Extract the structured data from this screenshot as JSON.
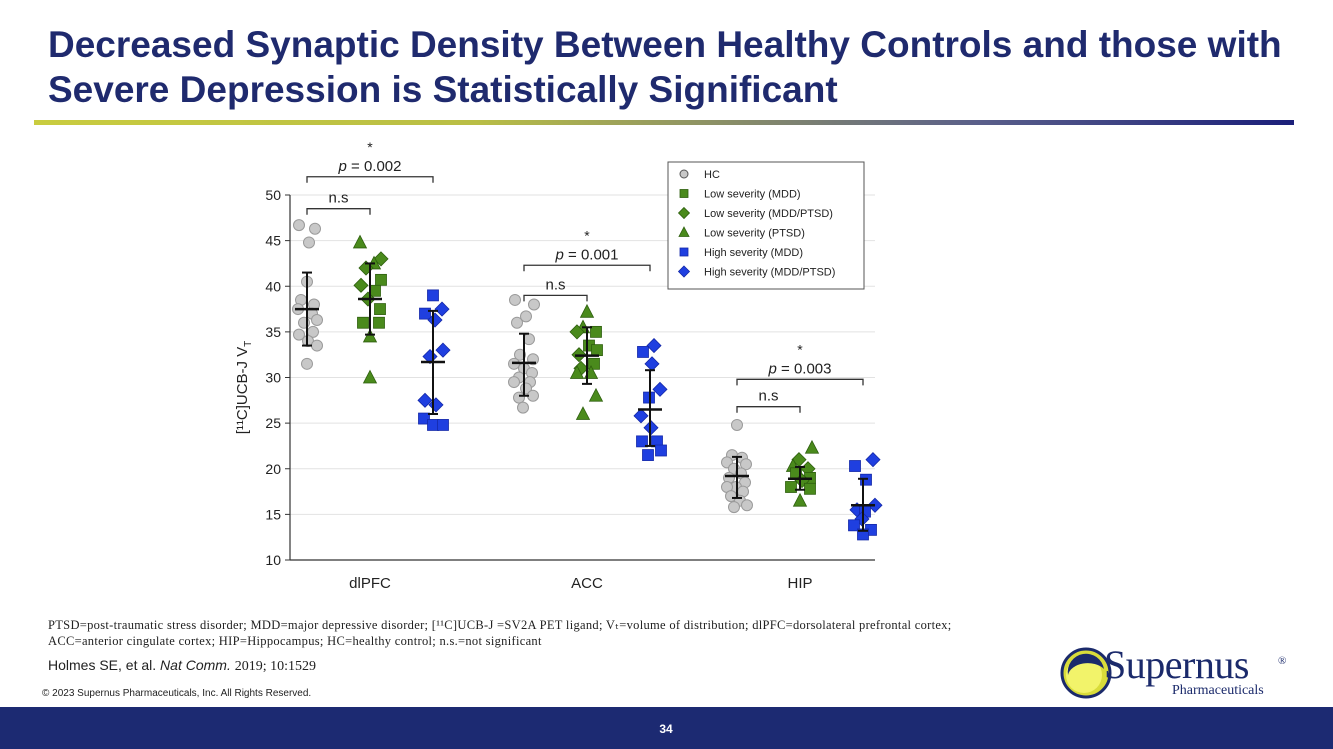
{
  "slide": {
    "title": "Decreased Synaptic Density Between Healthy Controls and those with Severe Depression is Statistically Significant",
    "footnote_line1": "PTSD=post-traumatic stress disorder; MDD=major depressive disorder; [¹¹C]UCB-J =SV2A PET ligand; Vₜ=volume of distribution; dlPFC=dorsolateral prefrontal cortex;",
    "footnote_line2": "ACC=anterior cingulate cortex; HIP=Hippocampus; HC=healthy control; n.s.=not significant",
    "citation_authors": "Holmes SE, et al.",
    "citation_journal": "Nat Comm.",
    "citation_details": "2019; 10:1529",
    "copyright": "© 2023 Supernus Pharmaceuticals, Inc. All Rights Reserved.",
    "page_number": "34",
    "logo_word": "Supernus",
    "logo_registered": "®",
    "logo_subtitle": "Pharmaceuticals"
  },
  "colors": {
    "title": "#1f2a6e",
    "footer_bar": "#1c2a72",
    "hc": "#c8c8c8",
    "low_severity": "#4a8a1c",
    "high_severity": "#1f3fe0"
  },
  "chart_data": {
    "type": "scatter",
    "ylabel": "[¹¹C]UCB-J V_T",
    "ylim": [
      10,
      50
    ],
    "yticks": [
      10,
      15,
      20,
      25,
      30,
      35,
      40,
      45,
      50
    ],
    "categories": [
      "dlPFC",
      "ACC",
      "HIP"
    ],
    "legend_position": "top-right",
    "legend": [
      {
        "label": "HC",
        "marker": "circle",
        "color": "#c8c8c8"
      },
      {
        "label": "Low severity (MDD)",
        "marker": "square",
        "color": "#4a8a1c"
      },
      {
        "label": "Low severity (MDD/PTSD)",
        "marker": "diamond",
        "color": "#4a8a1c"
      },
      {
        "label": "Low severity (PTSD)",
        "marker": "triangle",
        "color": "#4a8a1c"
      },
      {
        "label": "High severity (MDD)",
        "marker": "square",
        "color": "#1f3fe0"
      },
      {
        "label": "High severity (MDD/PTSD)",
        "marker": "diamond",
        "color": "#1f3fe0"
      }
    ],
    "groups": [
      {
        "region": "dlPFC",
        "group": "HC",
        "mean": 37.5,
        "sd_low": 33.5,
        "sd_high": 41.5,
        "points": [
          {
            "m": "circle",
            "v": 46.7,
            "o": -8
          },
          {
            "m": "circle",
            "v": 46.3,
            "o": 8
          },
          {
            "m": "circle",
            "v": 44.8,
            "o": 2
          },
          {
            "m": "circle",
            "v": 40.5,
            "o": 0
          },
          {
            "m": "circle",
            "v": 38.5,
            "o": -6
          },
          {
            "m": "circle",
            "v": 38.0,
            "o": 7
          },
          {
            "m": "circle",
            "v": 37.5,
            "o": -9
          },
          {
            "m": "circle",
            "v": 37.0,
            "o": 5
          },
          {
            "m": "circle",
            "v": 36.3,
            "o": 10
          },
          {
            "m": "circle",
            "v": 36.0,
            "o": -3
          },
          {
            "m": "circle",
            "v": 35.0,
            "o": 6
          },
          {
            "m": "circle",
            "v": 34.7,
            "o": -8
          },
          {
            "m": "circle",
            "v": 34.0,
            "o": 1
          },
          {
            "m": "circle",
            "v": 33.5,
            "o": 10
          },
          {
            "m": "circle",
            "v": 31.5,
            "o": 0
          }
        ]
      },
      {
        "region": "dlPFC",
        "group": "Low severity",
        "mean": 38.6,
        "sd_low": 34.7,
        "sd_high": 42.5,
        "points": [
          {
            "m": "triangle",
            "v": 44.8,
            "o": -10
          },
          {
            "m": "diamond",
            "v": 43.0,
            "o": 11
          },
          {
            "m": "triangle",
            "v": 42.5,
            "o": 4
          },
          {
            "m": "diamond",
            "v": 42.0,
            "o": -4
          },
          {
            "m": "square",
            "v": 40.7,
            "o": 11
          },
          {
            "m": "diamond",
            "v": 40.1,
            "o": -9
          },
          {
            "m": "square",
            "v": 39.5,
            "o": 5
          },
          {
            "m": "diamond",
            "v": 38.6,
            "o": -2
          },
          {
            "m": "square",
            "v": 37.5,
            "o": 10
          },
          {
            "m": "square",
            "v": 36.0,
            "o": -7
          },
          {
            "m": "square",
            "v": 36.0,
            "o": 9
          },
          {
            "m": "triangle",
            "v": 34.5,
            "o": 0
          },
          {
            "m": "triangle",
            "v": 30.0,
            "o": 0
          }
        ]
      },
      {
        "region": "dlPFC",
        "group": "High severity",
        "mean": 31.7,
        "sd_low": 26.0,
        "sd_high": 37.3,
        "points": [
          {
            "m": "square",
            "v": 39.0,
            "o": 0
          },
          {
            "m": "diamond",
            "v": 37.5,
            "o": 9
          },
          {
            "m": "square",
            "v": 37.0,
            "o": -8
          },
          {
            "m": "diamond",
            "v": 36.3,
            "o": 2
          },
          {
            "m": "diamond",
            "v": 33.0,
            "o": 10
          },
          {
            "m": "diamond",
            "v": 32.3,
            "o": -3
          },
          {
            "m": "diamond",
            "v": 27.5,
            "o": -8
          },
          {
            "m": "diamond",
            "v": 27.0,
            "o": 3
          },
          {
            "m": "square",
            "v": 25.5,
            "o": -9
          },
          {
            "m": "square",
            "v": 24.8,
            "o": 0
          },
          {
            "m": "square",
            "v": 24.8,
            "o": 10
          }
        ]
      },
      {
        "region": "ACC",
        "group": "HC",
        "mean": 31.6,
        "sd_low": 28.0,
        "sd_high": 34.8,
        "points": [
          {
            "m": "circle",
            "v": 38.5,
            "o": -9
          },
          {
            "m": "circle",
            "v": 38.0,
            "o": 10
          },
          {
            "m": "circle",
            "v": 36.7,
            "o": 2
          },
          {
            "m": "circle",
            "v": 36.0,
            "o": -7
          },
          {
            "m": "circle",
            "v": 34.2,
            "o": 5
          },
          {
            "m": "circle",
            "v": 32.5,
            "o": -4
          },
          {
            "m": "circle",
            "v": 32.0,
            "o": 9
          },
          {
            "m": "circle",
            "v": 31.5,
            "o": -10
          },
          {
            "m": "circle",
            "v": 31.0,
            "o": 0
          },
          {
            "m": "circle",
            "v": 30.5,
            "o": 8
          },
          {
            "m": "circle",
            "v": 30.0,
            "o": -5
          },
          {
            "m": "circle",
            "v": 29.5,
            "o": 6
          },
          {
            "m": "circle",
            "v": 29.5,
            "o": -10
          },
          {
            "m": "circle",
            "v": 28.8,
            "o": 2
          },
          {
            "m": "circle",
            "v": 28.0,
            "o": 9
          },
          {
            "m": "circle",
            "v": 27.8,
            "o": -5
          },
          {
            "m": "circle",
            "v": 26.7,
            "o": -1
          }
        ]
      },
      {
        "region": "ACC",
        "group": "Low severity",
        "mean": 32.4,
        "sd_low": 29.3,
        "sd_high": 35.5,
        "points": [
          {
            "m": "triangle",
            "v": 37.2,
            "o": 0
          },
          {
            "m": "triangle",
            "v": 35.5,
            "o": -4
          },
          {
            "m": "diamond",
            "v": 35.0,
            "o": -10
          },
          {
            "m": "square",
            "v": 35.0,
            "o": 9
          },
          {
            "m": "square",
            "v": 33.5,
            "o": 2
          },
          {
            "m": "square",
            "v": 33.0,
            "o": 10
          },
          {
            "m": "diamond",
            "v": 32.5,
            "o": -8
          },
          {
            "m": "square",
            "v": 31.5,
            "o": 7
          },
          {
            "m": "diamond",
            "v": 31.0,
            "o": -6
          },
          {
            "m": "triangle",
            "v": 30.5,
            "o": 4
          },
          {
            "m": "triangle",
            "v": 30.5,
            "o": -10
          },
          {
            "m": "triangle",
            "v": 28.0,
            "o": 9
          },
          {
            "m": "triangle",
            "v": 26.0,
            "o": -4
          }
        ]
      },
      {
        "region": "ACC",
        "group": "High severity",
        "mean": 26.5,
        "sd_low": 22.5,
        "sd_high": 30.8,
        "points": [
          {
            "m": "diamond",
            "v": 33.5,
            "o": 4
          },
          {
            "m": "square",
            "v": 32.8,
            "o": -7
          },
          {
            "m": "diamond",
            "v": 31.5,
            "o": 2
          },
          {
            "m": "diamond",
            "v": 28.7,
            "o": 10
          },
          {
            "m": "square",
            "v": 27.8,
            "o": -1
          },
          {
            "m": "diamond",
            "v": 25.8,
            "o": -9
          },
          {
            "m": "diamond",
            "v": 24.5,
            "o": 1
          },
          {
            "m": "square",
            "v": 23.0,
            "o": -8
          },
          {
            "m": "square",
            "v": 23.0,
            "o": 7
          },
          {
            "m": "square",
            "v": 22.0,
            "o": 11
          },
          {
            "m": "square",
            "v": 21.5,
            "o": -2
          }
        ]
      },
      {
        "region": "HIP",
        "group": "HC",
        "mean": 19.2,
        "sd_low": 16.8,
        "sd_high": 21.3,
        "points": [
          {
            "m": "circle",
            "v": 24.8,
            "o": 0
          },
          {
            "m": "circle",
            "v": 21.5,
            "o": -5
          },
          {
            "m": "circle",
            "v": 21.2,
            "o": 5
          },
          {
            "m": "circle",
            "v": 20.7,
            "o": -10
          },
          {
            "m": "circle",
            "v": 20.5,
            "o": 9
          },
          {
            "m": "circle",
            "v": 20.0,
            "o": -3
          },
          {
            "m": "circle",
            "v": 19.5,
            "o": 4
          },
          {
            "m": "circle",
            "v": 19.0,
            "o": -8
          },
          {
            "m": "circle",
            "v": 18.5,
            "o": 8
          },
          {
            "m": "circle",
            "v": 18.0,
            "o": -1
          },
          {
            "m": "circle",
            "v": 18.0,
            "o": -10
          },
          {
            "m": "circle",
            "v": 17.5,
            "o": 6
          },
          {
            "m": "circle",
            "v": 17.0,
            "o": -6
          },
          {
            "m": "circle",
            "v": 16.5,
            "o": 3
          },
          {
            "m": "circle",
            "v": 16.0,
            "o": 10
          },
          {
            "m": "circle",
            "v": 15.8,
            "o": -3
          }
        ]
      },
      {
        "region": "HIP",
        "group": "Low severity",
        "mean": 18.9,
        "sd_low": 17.7,
        "sd_high": 20.2,
        "points": [
          {
            "m": "triangle",
            "v": 22.3,
            "o": 12
          },
          {
            "m": "diamond",
            "v": 21.0,
            "o": -1
          },
          {
            "m": "triangle",
            "v": 20.3,
            "o": -7
          },
          {
            "m": "diamond",
            "v": 20.0,
            "o": 8
          },
          {
            "m": "square",
            "v": 19.5,
            "o": -4
          },
          {
            "m": "square",
            "v": 19.0,
            "o": 10
          },
          {
            "m": "diamond",
            "v": 18.7,
            "o": 2
          },
          {
            "m": "square",
            "v": 18.0,
            "o": -9
          },
          {
            "m": "square",
            "v": 17.8,
            "o": 10
          },
          {
            "m": "triangle",
            "v": 16.5,
            "o": 0
          }
        ]
      },
      {
        "region": "HIP",
        "group": "High severity",
        "mean": 16.0,
        "sd_low": 13.2,
        "sd_high": 18.9,
        "points": [
          {
            "m": "diamond",
            "v": 21.0,
            "o": 10
          },
          {
            "m": "square",
            "v": 20.3,
            "o": -8
          },
          {
            "m": "square",
            "v": 18.8,
            "o": 3
          },
          {
            "m": "diamond",
            "v": 16.0,
            "o": 12
          },
          {
            "m": "diamond",
            "v": 15.5,
            "o": -6
          },
          {
            "m": "square",
            "v": 15.3,
            "o": 2
          },
          {
            "m": "diamond",
            "v": 14.5,
            "o": -1
          },
          {
            "m": "square",
            "v": 13.8,
            "o": -9
          },
          {
            "m": "square",
            "v": 13.3,
            "o": 8
          },
          {
            "m": "square",
            "v": 12.8,
            "o": 0
          }
        ]
      }
    ],
    "annotations": [
      {
        "region": "dlPFC",
        "from": 0,
        "to": 1,
        "label": "n.s",
        "star": false,
        "level": 48.5
      },
      {
        "region": "dlPFC",
        "from": 0,
        "to": 2,
        "label": "p = 0.002",
        "star": true,
        "level": 52.0
      },
      {
        "region": "ACC",
        "from": 0,
        "to": 1,
        "label": "n.s",
        "star": false,
        "level": 39.0
      },
      {
        "region": "ACC",
        "from": 0,
        "to": 2,
        "label": "p = 0.001",
        "star": true,
        "level": 42.3
      },
      {
        "region": "HIP",
        "from": 0,
        "to": 1,
        "label": "n.s",
        "star": false,
        "level": 26.8
      },
      {
        "region": "HIP",
        "from": 0,
        "to": 2,
        "label": "p = 0.003",
        "star": true,
        "level": 29.8
      }
    ]
  }
}
